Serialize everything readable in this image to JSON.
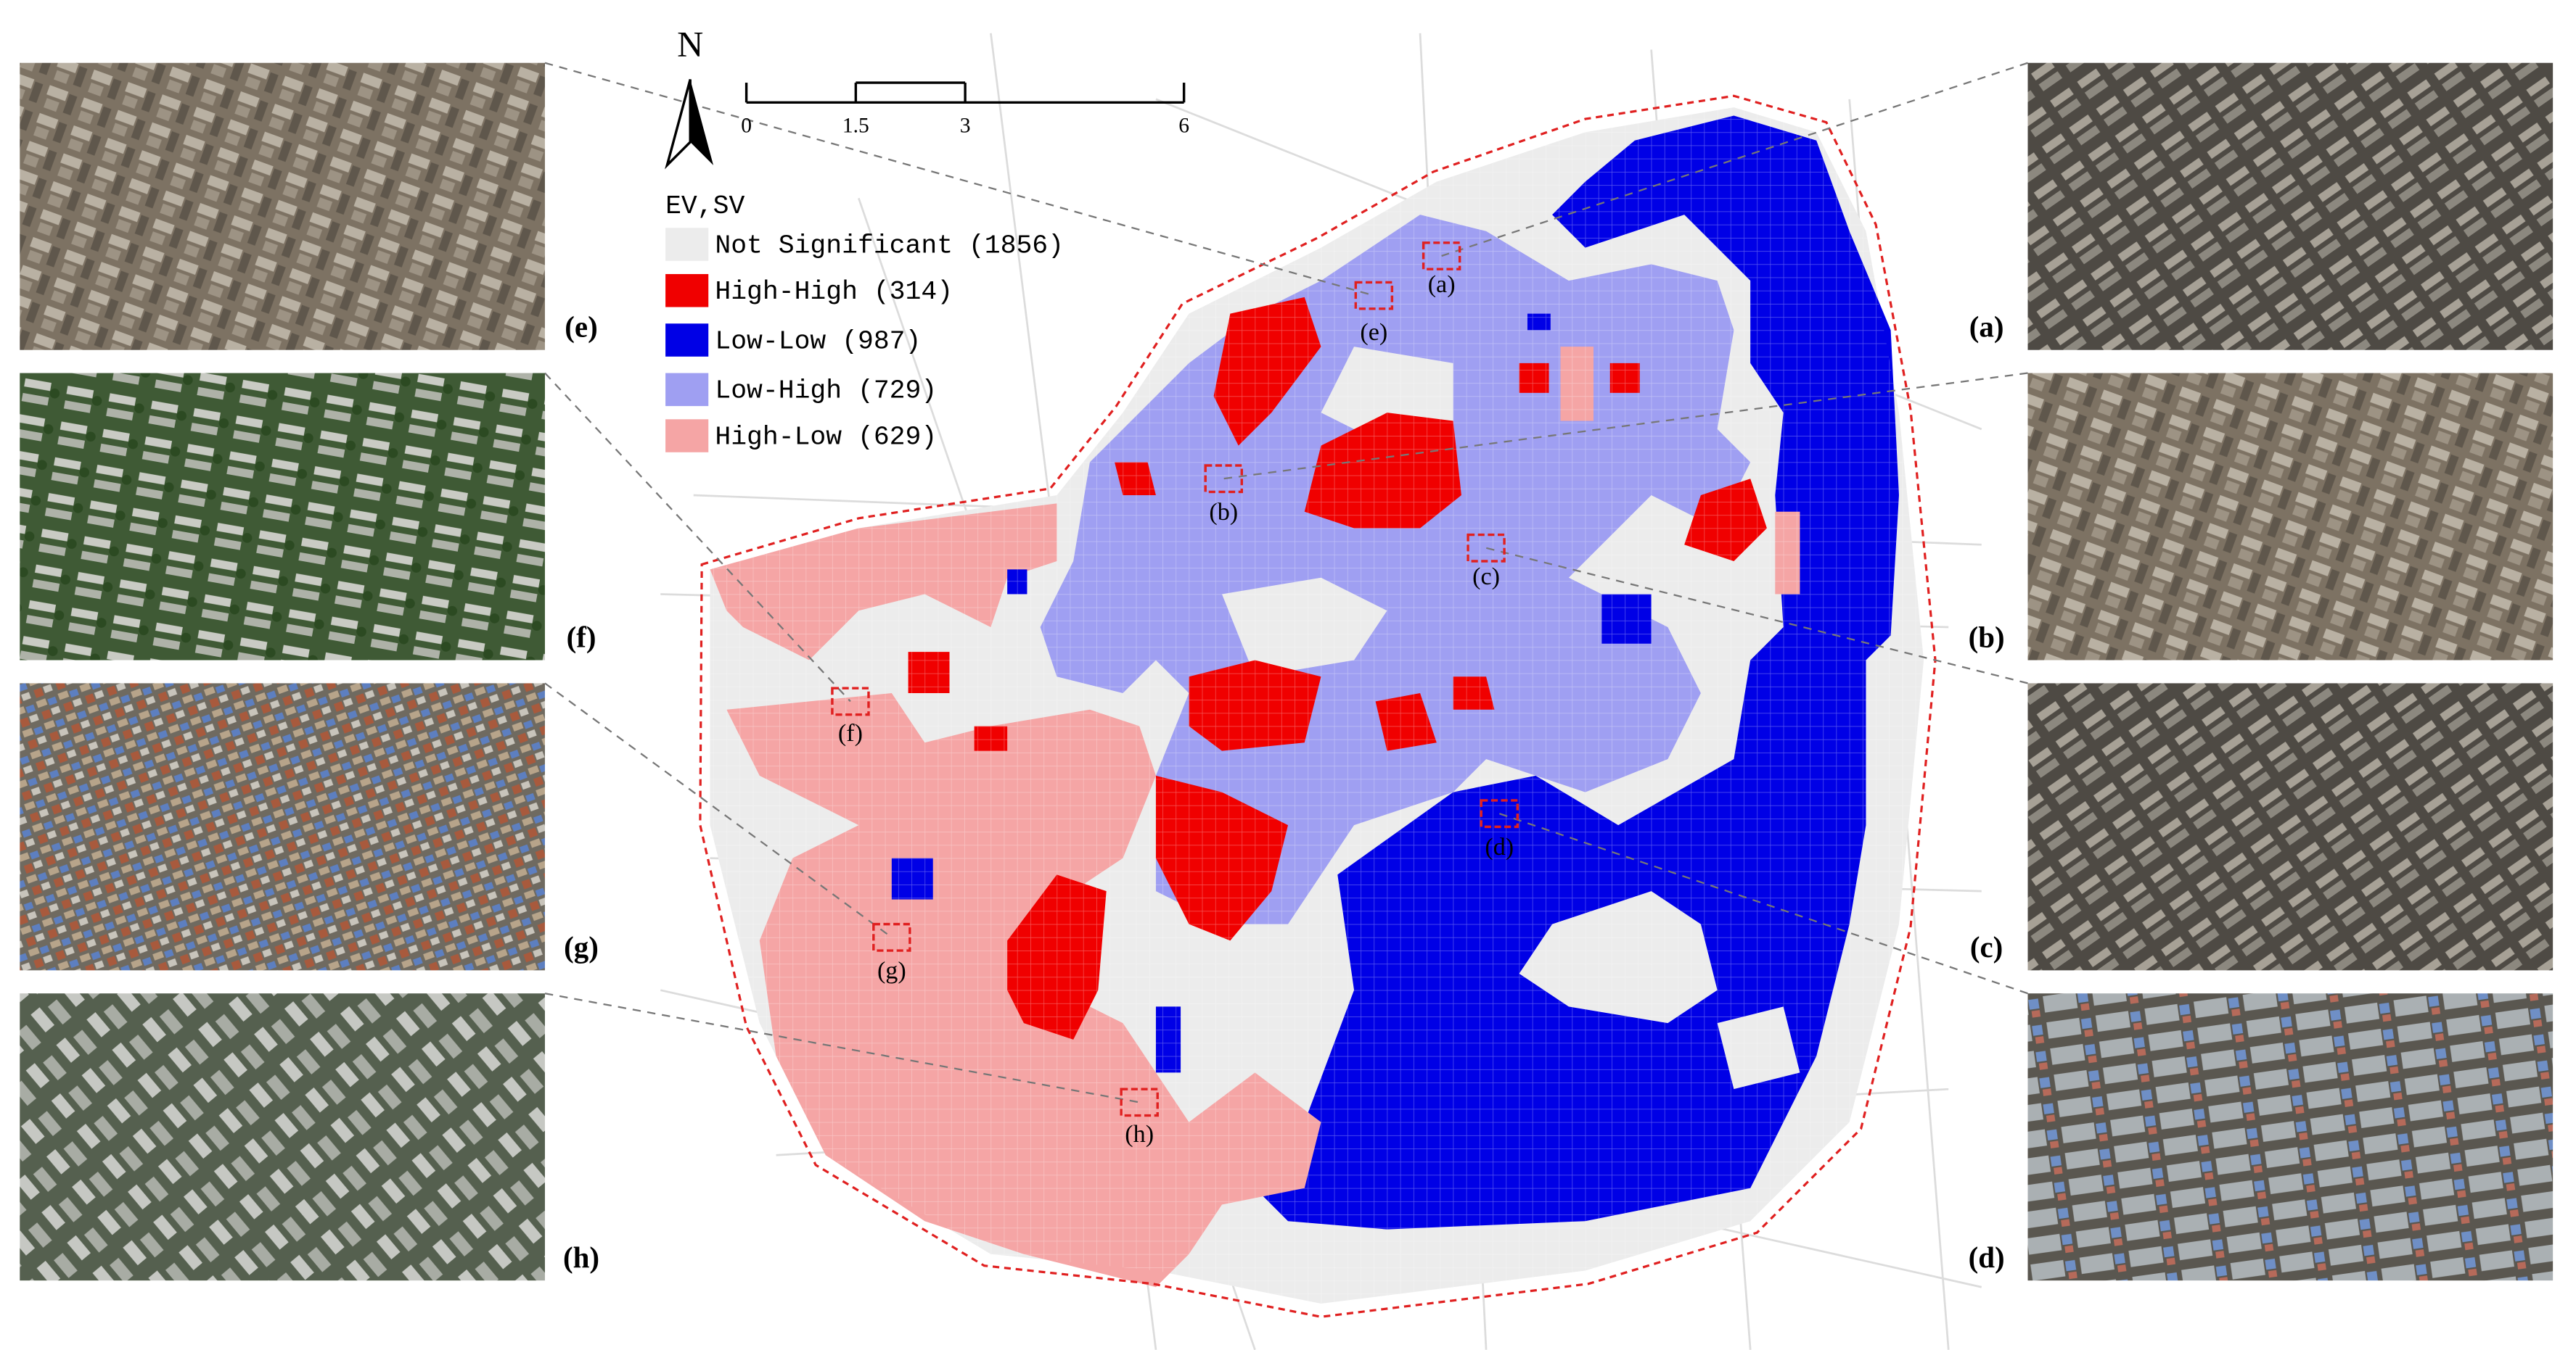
{
  "legend": {
    "title": "EV,SV",
    "items": [
      {
        "label": "Not Significant (1856)",
        "color": "#ececec"
      },
      {
        "label": "High-High (314)",
        "color": "#f00000"
      },
      {
        "label": "Low-Low (987)",
        "color": "#0000e6"
      },
      {
        "label": "Low-High (729)",
        "color": "#9f9ff2"
      },
      {
        "label": "High-Low (629)",
        "color": "#f5a5a5"
      }
    ]
  },
  "north_arrow": "N",
  "scale_bar": {
    "ticks": [
      0,
      1.5,
      3,
      6
    ]
  },
  "sites": [
    {
      "label": "(a)"
    },
    {
      "label": "(b)"
    },
    {
      "label": "(c)"
    },
    {
      "label": "(d)"
    },
    {
      "label": "(e)"
    },
    {
      "label": "(f)"
    },
    {
      "label": "(g)"
    },
    {
      "label": "(h)"
    }
  ]
}
